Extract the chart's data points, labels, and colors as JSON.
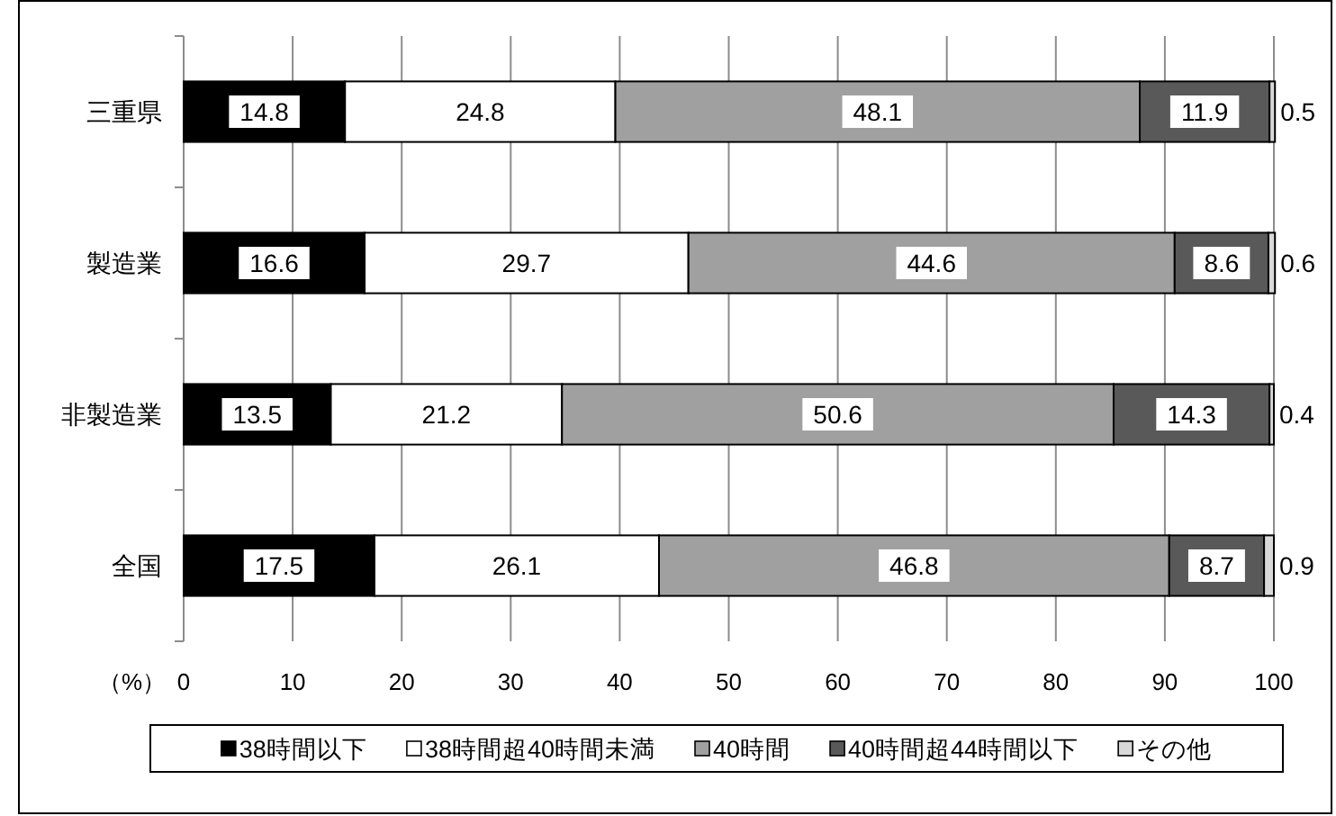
{
  "chart_data": {
    "type": "bar",
    "orientation": "horizontal",
    "stacked": true,
    "categories": [
      "三重県",
      "製造業",
      "非製造業",
      "全国"
    ],
    "xlabel": "（%）",
    "series": [
      {
        "name": "38時間以下",
        "color": "#000000",
        "values": [
          14.8,
          16.6,
          13.5,
          17.5
        ]
      },
      {
        "name": "38時間超40時間未満",
        "color": "#ffffff",
        "values": [
          24.8,
          29.7,
          21.2,
          26.1
        ]
      },
      {
        "name": "40時間",
        "color": "#a0a0a0",
        "values": [
          48.1,
          44.6,
          50.6,
          46.8
        ]
      },
      {
        "name": "40時間超44時間以下",
        "color": "#595959",
        "values": [
          11.9,
          8.6,
          14.3,
          8.7
        ]
      },
      {
        "name": "その他",
        "color": "#d9d9d9",
        "values": [
          0.5,
          0.6,
          0.4,
          0.9
        ]
      }
    ],
    "xlim": [
      0,
      100
    ],
    "xticks": [
      0,
      10,
      20,
      30,
      40,
      50,
      60,
      70,
      80,
      90,
      100
    ],
    "grid": "x",
    "legend": "bottom",
    "data_labels": true
  }
}
